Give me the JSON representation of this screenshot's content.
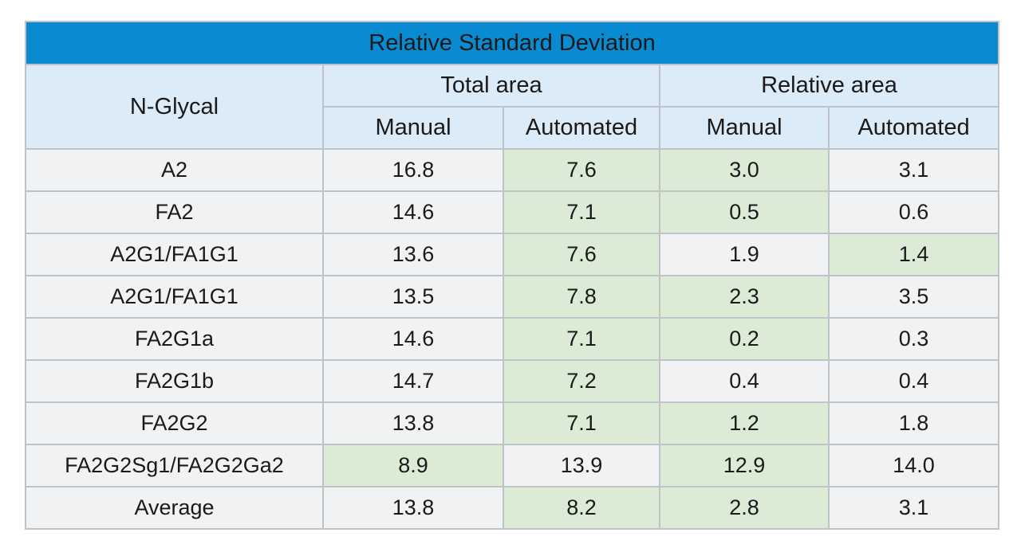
{
  "table": {
    "title": "Relative Standard Deviation",
    "row_header": "N-Glycal",
    "group_headers": [
      "Total area",
      "Relative area"
    ],
    "sub_headers": [
      "Manual",
      "Automated",
      "Manual",
      "Automated"
    ],
    "highlight_color": "#dcebd5",
    "header_color": "#0a8ad1",
    "rows": [
      {
        "label": "A2",
        "values": [
          "16.8",
          "7.6",
          "3.0",
          "3.1"
        ],
        "highlight": [
          false,
          true,
          true,
          false
        ]
      },
      {
        "label": "FA2",
        "values": [
          "14.6",
          "7.1",
          "0.5",
          "0.6"
        ],
        "highlight": [
          false,
          true,
          true,
          false
        ]
      },
      {
        "label": "A2G1/FA1G1",
        "values": [
          "13.6",
          "7.6",
          "1.9",
          "1.4"
        ],
        "highlight": [
          false,
          true,
          false,
          true
        ]
      },
      {
        "label": "A2G1/FA1G1",
        "values": [
          "13.5",
          "7.8",
          "2.3",
          "3.5"
        ],
        "highlight": [
          false,
          true,
          true,
          false
        ]
      },
      {
        "label": "FA2G1a",
        "values": [
          "14.6",
          "7.1",
          "0.2",
          "0.3"
        ],
        "highlight": [
          false,
          true,
          true,
          false
        ]
      },
      {
        "label": "FA2G1b",
        "values": [
          "14.7",
          "7.2",
          "0.4",
          "0.4"
        ],
        "highlight": [
          false,
          true,
          false,
          false
        ]
      },
      {
        "label": "FA2G2",
        "values": [
          "13.8",
          "7.1",
          "1.2",
          "1.8"
        ],
        "highlight": [
          false,
          true,
          true,
          false
        ]
      },
      {
        "label": "FA2G2Sg1/FA2G2Ga2",
        "values": [
          "8.9",
          "13.9",
          "12.9",
          "14.0"
        ],
        "highlight": [
          true,
          false,
          true,
          false
        ]
      },
      {
        "label": "Average",
        "values": [
          "13.8",
          "8.2",
          "2.8",
          "3.1"
        ],
        "highlight": [
          false,
          true,
          true,
          false
        ]
      }
    ]
  }
}
